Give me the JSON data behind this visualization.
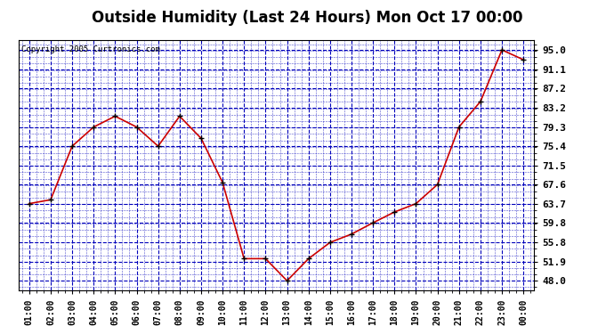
{
  "title": "Outside Humidity (Last 24 Hours) Mon Oct 17 00:00",
  "copyright": "Copyright 2005 Curtronics.com",
  "x_labels": [
    "01:00",
    "02:00",
    "03:00",
    "04:00",
    "05:00",
    "06:00",
    "07:00",
    "08:00",
    "09:00",
    "10:00",
    "11:00",
    "12:00",
    "13:00",
    "14:00",
    "15:00",
    "16:00",
    "17:00",
    "18:00",
    "19:00",
    "20:00",
    "21:00",
    "22:00",
    "23:00",
    "00:00"
  ],
  "y_values": [
    63.7,
    64.5,
    75.4,
    79.3,
    81.5,
    79.3,
    75.4,
    81.5,
    77.0,
    68.0,
    52.5,
    52.5,
    48.0,
    52.5,
    55.8,
    57.5,
    59.8,
    62.0,
    63.7,
    67.6,
    79.3,
    84.5,
    95.0,
    93.0
  ],
  "y_ticks": [
    48.0,
    51.9,
    55.8,
    59.8,
    63.7,
    67.6,
    71.5,
    75.4,
    79.3,
    83.2,
    87.2,
    91.1,
    95.0
  ],
  "line_color": "#cc0000",
  "marker_color": "#000000",
  "bg_color": "#ffffff",
  "grid_color_major": "#0000bb",
  "grid_color_minor": "#0000bb",
  "title_fontsize": 12,
  "ylim": [
    46.0,
    97.0
  ]
}
